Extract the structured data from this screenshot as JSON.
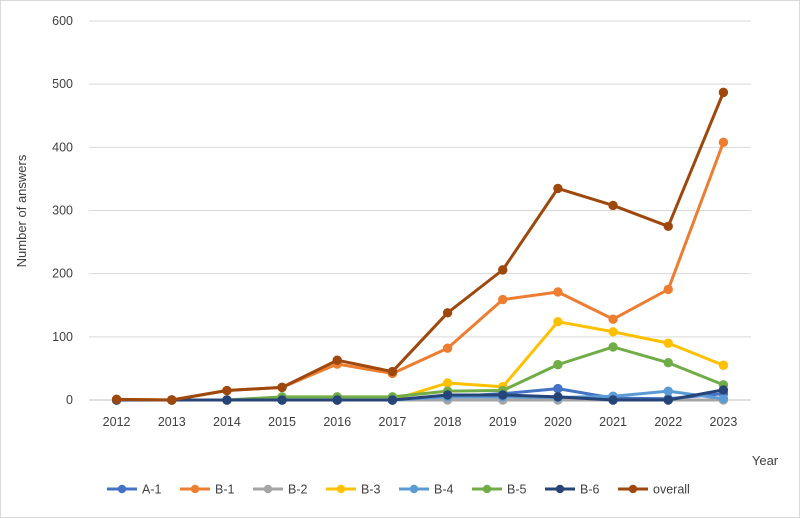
{
  "chart_data": {
    "type": "line",
    "title": "",
    "xlabel": "Year",
    "ylabel": "Number of answers",
    "ylim": [
      0,
      600
    ],
    "yticks": [
      0,
      100,
      200,
      300,
      400,
      500,
      600
    ],
    "grid": true,
    "legend_position": "bottom",
    "categories": [
      "2012",
      "2013",
      "2014",
      "2015",
      "2016",
      "2017",
      "2018",
      "2019",
      "2020",
      "2021",
      "2022",
      "2023"
    ],
    "series": [
      {
        "name": "A-1",
        "color": "#4472C4",
        "values": [
          0,
          0,
          0,
          0,
          0,
          0,
          5,
          10,
          18,
          3,
          2,
          10
        ]
      },
      {
        "name": "B-1",
        "color": "#ED7D31",
        "values": [
          1,
          0,
          15,
          20,
          57,
          42,
          82,
          159,
          171,
          128,
          175,
          408
        ]
      },
      {
        "name": "B-2",
        "color": "#A5A5A5",
        "values": [
          0,
          0,
          0,
          0,
          0,
          0,
          0,
          0,
          0,
          0,
          0,
          0
        ]
      },
      {
        "name": "B-3",
        "color": "#FFC000",
        "values": [
          0,
          0,
          0,
          0,
          0,
          0,
          27,
          21,
          124,
          108,
          90,
          55
        ]
      },
      {
        "name": "B-4",
        "color": "#5B9BD5",
        "values": [
          0,
          0,
          0,
          0,
          0,
          0,
          5,
          5,
          4,
          6,
          14,
          2
        ]
      },
      {
        "name": "B-5",
        "color": "#70AD47",
        "values": [
          0,
          0,
          0,
          5,
          5,
          5,
          14,
          15,
          56,
          84,
          59,
          24
        ]
      },
      {
        "name": "B-6",
        "color": "#264478",
        "values": [
          0,
          0,
          0,
          0,
          0,
          0,
          8,
          8,
          5,
          0,
          0,
          16
        ]
      },
      {
        "name": "overall",
        "color": "#9E480E",
        "values": [
          1,
          0,
          15,
          20,
          63,
          45,
          138,
          206,
          335,
          308,
          275,
          487
        ]
      }
    ]
  }
}
